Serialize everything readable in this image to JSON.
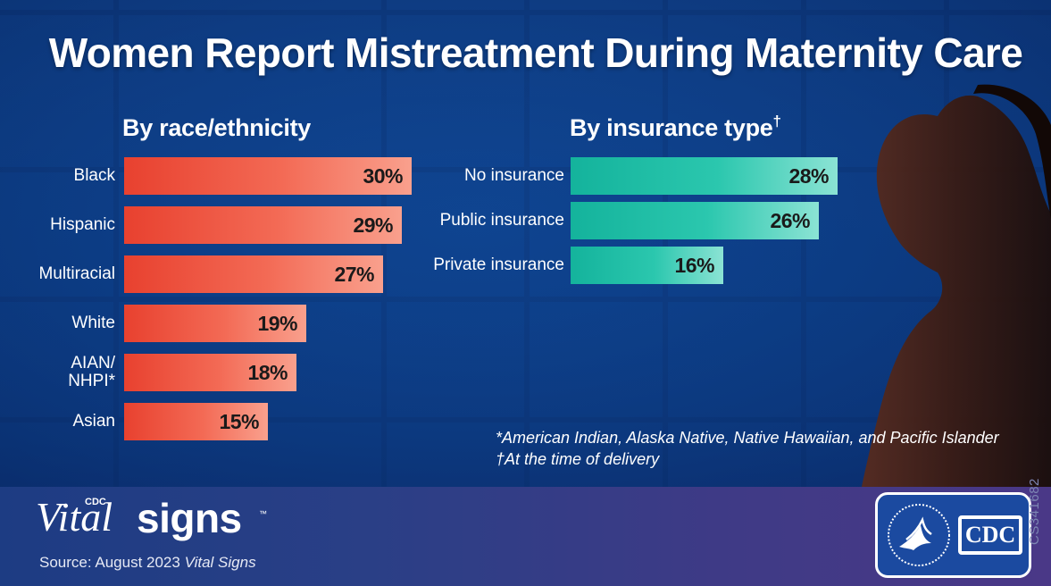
{
  "title": "Women Report Mistreatment During Maternity Care",
  "colors": {
    "race_bar": "#e8412f",
    "insurance_bar": "#14b39c",
    "background": "#0a3a82"
  },
  "chart_data": [
    {
      "type": "bar",
      "orientation": "horizontal",
      "title": "By race/ethnicity",
      "categories": [
        "Black",
        "Hispanic",
        "Multiracial",
        "White",
        "AIAN/ NHPI*",
        "Asian"
      ],
      "category_lines": [
        [
          "Black"
        ],
        [
          "Hispanic"
        ],
        [
          "Multiracial"
        ],
        [
          "White"
        ],
        [
          "AIAN/",
          "NHPI*"
        ],
        [
          "Asian"
        ]
      ],
      "values": [
        30,
        29,
        27,
        19,
        18,
        15
      ],
      "value_labels": [
        "30%",
        "29%",
        "27%",
        "19%",
        "18%",
        "15%"
      ],
      "unit": "%",
      "xlim": [
        0,
        30
      ],
      "grid": false
    },
    {
      "type": "bar",
      "orientation": "horizontal",
      "title": "By insurance type",
      "title_mark": "†",
      "categories": [
        "No insurance",
        "Public insurance",
        "Private insurance"
      ],
      "values": [
        28,
        26,
        16
      ],
      "value_labels": [
        "28%",
        "26%",
        "16%"
      ],
      "unit": "%",
      "xlim": [
        0,
        28
      ],
      "grid": false
    }
  ],
  "footnotes": [
    "*American Indian, Alaska Native, Native Hawaiian, and Pacific Islander",
    "†At the time of delivery"
  ],
  "footer": {
    "brand_vital": "Vital",
    "brand_signs": "signs",
    "brand_cdc": "CDC",
    "brand_tm": "™",
    "source_prefix": "Source: August 2023 ",
    "source_em": "Vital Signs",
    "logo_text": "CDC",
    "code": "CS341682"
  }
}
